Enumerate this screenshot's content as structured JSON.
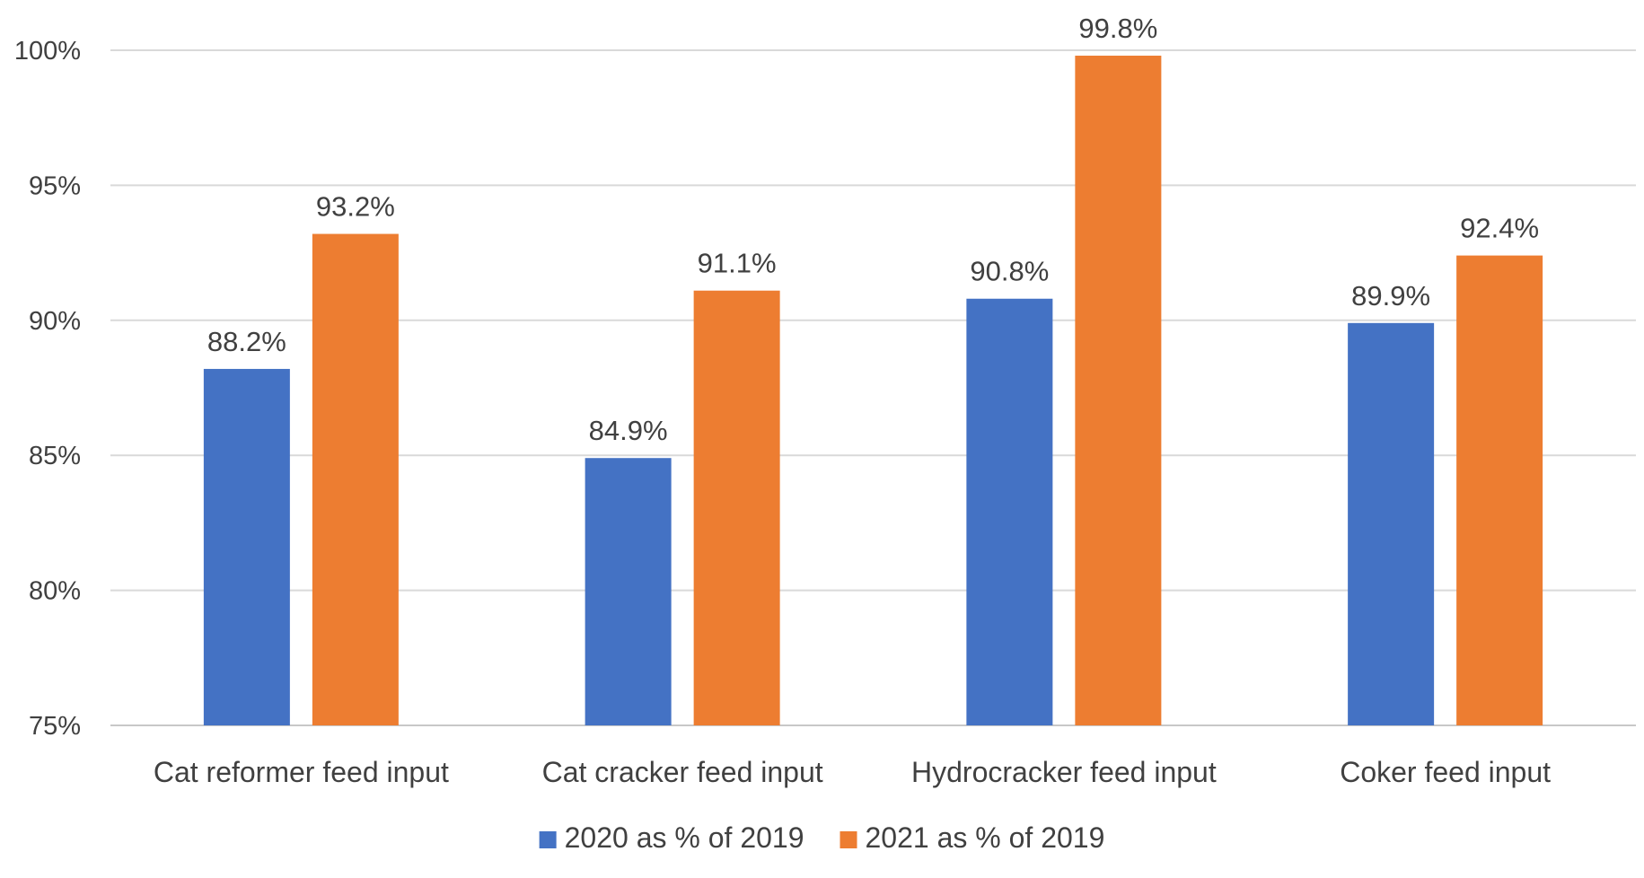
{
  "chart_data": {
    "type": "bar",
    "title": "",
    "xlabel": "",
    "ylabel": "",
    "categories": [
      "Cat reformer feed input",
      "Cat cracker feed input",
      "Hydrocracker feed input",
      "Coker feed input"
    ],
    "series": [
      {
        "name": "2020 as % of 2019",
        "color": "#4472c4",
        "values": [
          88.2,
          84.9,
          90.8,
          89.9
        ],
        "labels": [
          "88.2%",
          "84.9%",
          "90.8%",
          "89.9%"
        ]
      },
      {
        "name": "2021 as % of 2019",
        "color": "#ed7d31",
        "values": [
          93.2,
          91.1,
          99.8,
          92.4
        ],
        "labels": [
          "93.2%",
          "91.1%",
          "99.8%",
          "92.4%"
        ]
      }
    ],
    "ylim": [
      75,
      100
    ],
    "y_ticks": [
      75,
      80,
      85,
      90,
      95,
      100
    ],
    "y_tick_labels": [
      "75%",
      "80%",
      "85%",
      "90%",
      "95%",
      "100%"
    ],
    "grid": true,
    "legend_position": "bottom"
  }
}
